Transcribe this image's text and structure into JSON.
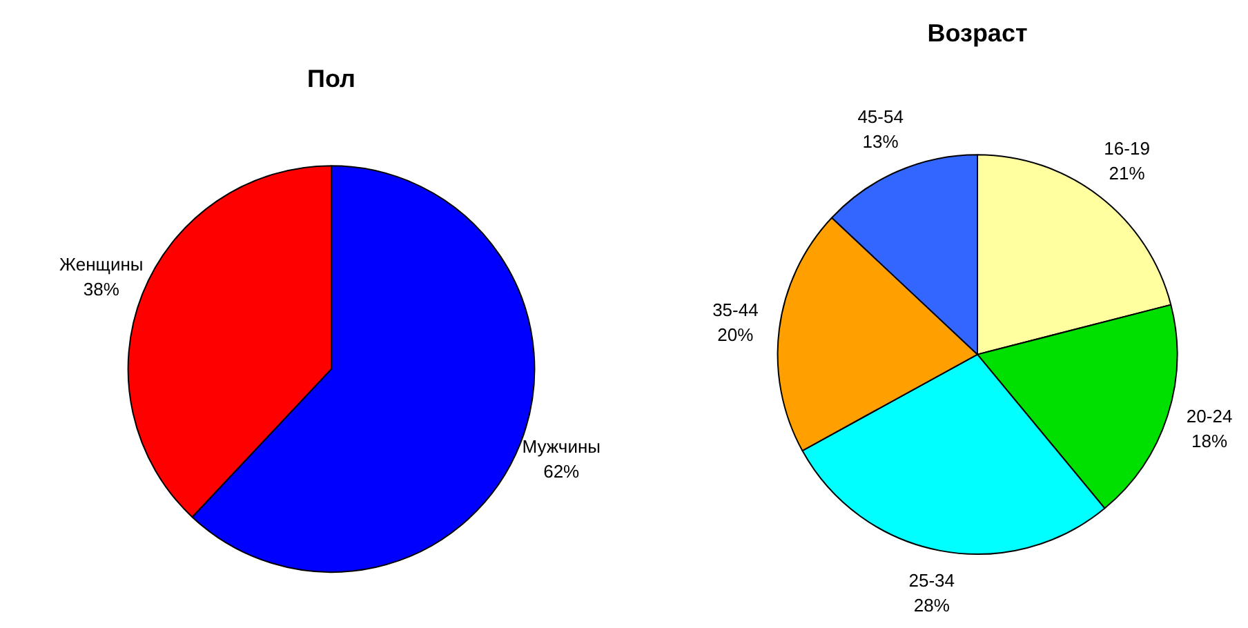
{
  "chart_data": [
    {
      "type": "pie",
      "title": "Пол",
      "categories": [
        "Мужчины",
        "Женщины"
      ],
      "values": [
        62,
        38
      ],
      "colors": [
        "#0000ff",
        "#ff0000"
      ],
      "value_labels": [
        "62%",
        "38%"
      ]
    },
    {
      "type": "pie",
      "title": "Возраст",
      "categories": [
        "16-19",
        "20-24",
        "25-34",
        "35-44",
        "45-54"
      ],
      "values": [
        21,
        18,
        28,
        20,
        13
      ],
      "colors": [
        "#ffffa0",
        "#00e000",
        "#00ffff",
        "#ffa000",
        "#3366ff"
      ],
      "value_labels": [
        "21%",
        "18%",
        "28%",
        "20%",
        "13%"
      ]
    }
  ]
}
